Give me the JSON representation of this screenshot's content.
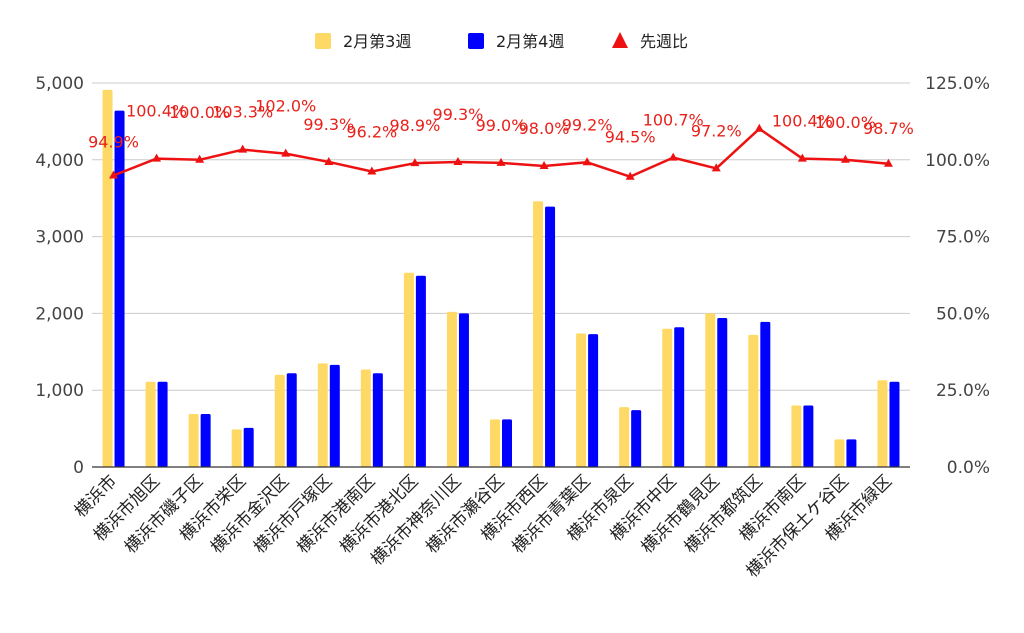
{
  "chart_data": {
    "type": "bar",
    "categories": [
      "横浜市",
      "横浜市旭区",
      "横浜市磯子区",
      "横浜市栄区",
      "横浜市金沢区",
      "横浜市戸塚区",
      "横浜市港南区",
      "横浜市港北区",
      "横浜市神奈川区",
      "横浜市瀬谷区",
      "横浜市西区",
      "横浜市青葉区",
      "横浜市泉区",
      "横浜市中区",
      "横浜市鶴見区",
      "横浜市都筑区",
      "横浜市南区",
      "横浜市保土ケ谷区",
      "横浜市緑区"
    ],
    "series": [
      {
        "name": "2月第3週",
        "type": "bar",
        "axis": "left",
        "color": "#ffd966",
        "values": [
          4910,
          1110,
          690,
          490,
          1200,
          1350,
          1270,
          2530,
          2020,
          620,
          3460,
          1740,
          780,
          1800,
          2000,
          1720,
          800,
          360,
          1130
        ]
      },
      {
        "name": "2月第4週",
        "type": "bar",
        "axis": "left",
        "color": "#0000ff",
        "values": [
          4640,
          1110,
          690,
          510,
          1220,
          1330,
          1220,
          2490,
          2000,
          620,
          3390,
          1730,
          740,
          1820,
          1940,
          1890,
          800,
          360,
          1110
        ]
      },
      {
        "name": "先週比",
        "type": "line",
        "axis": "right",
        "color": "#ee1111",
        "values": [
          94.9,
          100.4,
          100.0,
          103.3,
          102.0,
          99.3,
          96.2,
          98.9,
          99.3,
          99.0,
          98.0,
          99.2,
          94.5,
          100.7,
          97.2,
          110.1,
          100.4,
          100.0,
          98.7
        ],
        "labels": [
          "94.9%",
          "100.4%",
          "100.0%",
          "103.3%",
          "102.0%",
          "99.3%",
          "96.2%",
          "98.9%",
          "99.3%",
          "99.0%",
          "98.0%",
          "99.2%",
          "94.5%",
          "100.7%",
          "97.2%",
          "",
          "100.4%",
          "100.0%",
          "98.7%"
        ]
      }
    ],
    "y_left": {
      "min": 0,
      "max": 5000,
      "ticks": [
        "0",
        "1,000",
        "2,000",
        "3,000",
        "4,000",
        "5,000"
      ]
    },
    "y_right": {
      "min": 0,
      "max": 125,
      "ticks": [
        "0.0%",
        "25.0%",
        "50.0%",
        "75.0%",
        "100.0%",
        "125.0%"
      ]
    },
    "legend_position": "top",
    "grid": true,
    "title": "",
    "xlabel": "",
    "ylabel": ""
  }
}
